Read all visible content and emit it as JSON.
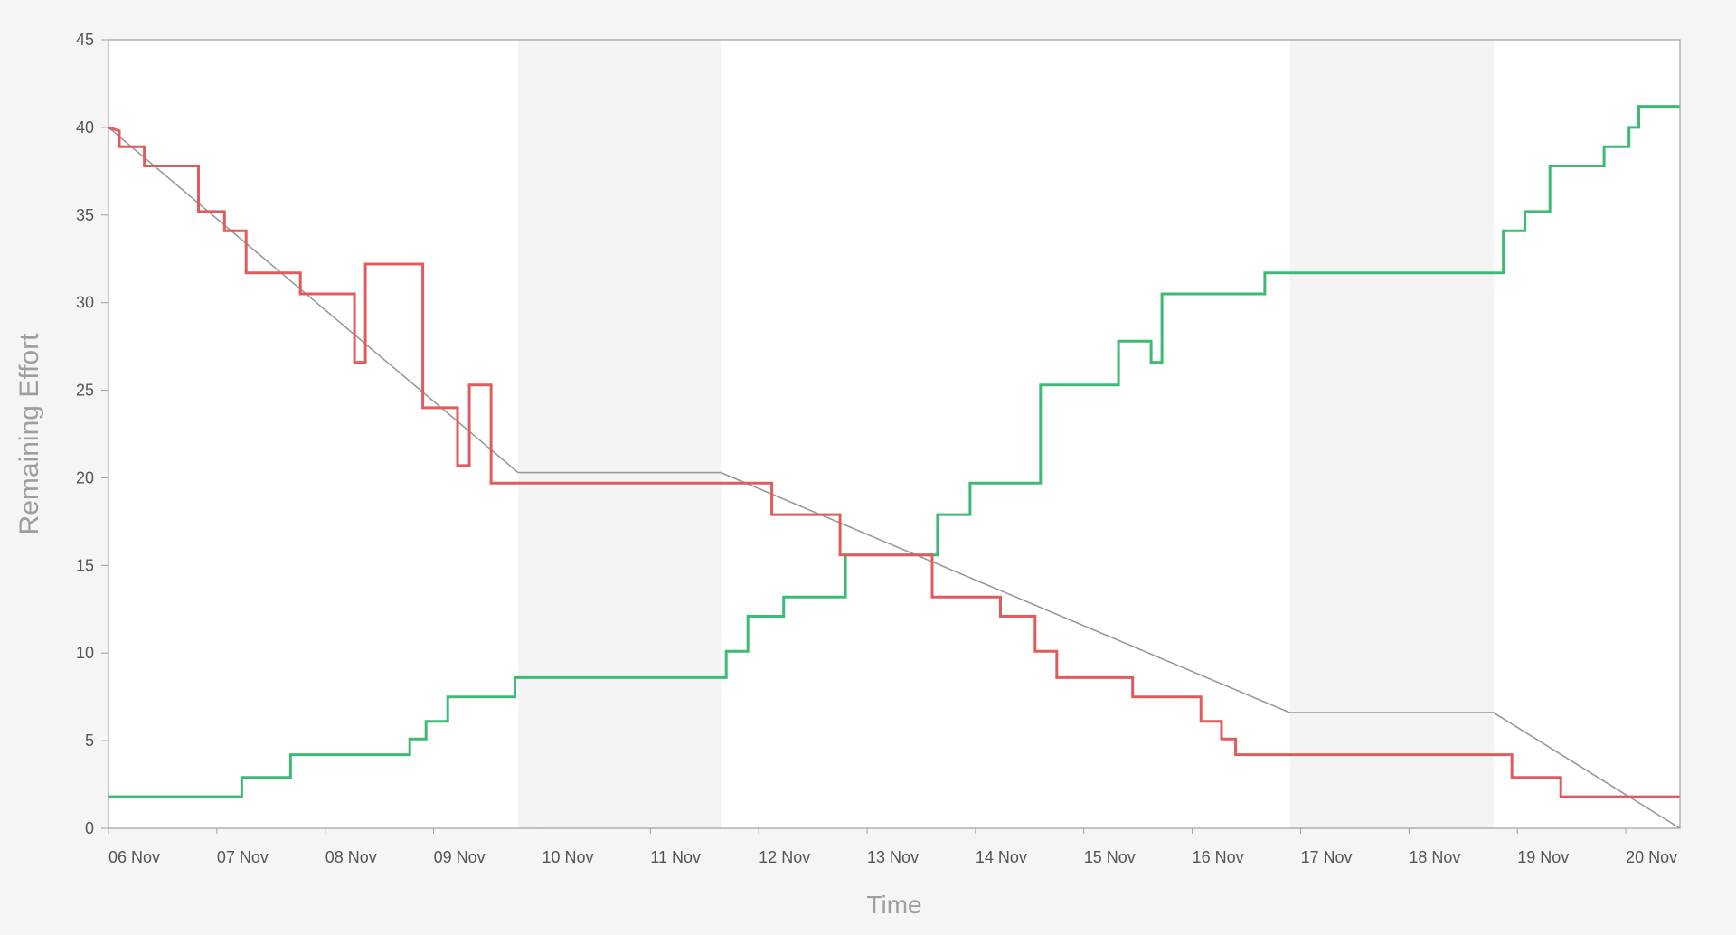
{
  "chart_data": {
    "type": "line",
    "title": "",
    "xlabel": "Time",
    "ylabel": "Remaining Effort",
    "x_tick_labels": [
      "06 Nov",
      "07 Nov",
      "08 Nov",
      "09 Nov",
      "10 Nov",
      "11 Nov",
      "12 Nov",
      "13 Nov",
      "14 Nov",
      "15 Nov",
      "16 Nov",
      "17 Nov",
      "18 Nov",
      "19 Nov",
      "20 Nov"
    ],
    "y_tick_labels": [
      "0",
      "5",
      "10",
      "15",
      "20",
      "25",
      "30",
      "35",
      "40",
      "45"
    ],
    "xlim": [
      0,
      14.5
    ],
    "ylim": [
      0,
      45
    ],
    "grid": false,
    "non_working_periods": [
      [
        3.78,
        5.65
      ],
      [
        10.9,
        12.78
      ]
    ],
    "colors": {
      "remaining": "#e05c5c",
      "completed": "#3dbb75",
      "ideal": "#999999",
      "shade": "#f4f4f4",
      "axis": "#9e9e9e",
      "tick_text": "#555555",
      "axis_title": "#9e9e9e"
    },
    "series": [
      {
        "key": "remaining",
        "step": true,
        "points": [
          [
            0,
            40
          ],
          [
            0.1,
            39.8
          ],
          [
            0.1,
            38.9
          ],
          [
            0.33,
            38.9
          ],
          [
            0.33,
            37.8
          ],
          [
            0.83,
            37.8
          ],
          [
            0.83,
            35.2
          ],
          [
            1.07,
            35.2
          ],
          [
            1.07,
            34.1
          ],
          [
            1.27,
            34.1
          ],
          [
            1.27,
            31.7
          ],
          [
            1.77,
            31.7
          ],
          [
            1.77,
            30.5
          ],
          [
            2.27,
            30.5
          ],
          [
            2.27,
            26.6
          ],
          [
            2.37,
            26.6
          ],
          [
            2.37,
            32.2
          ],
          [
            2.9,
            32.2
          ],
          [
            2.9,
            24
          ],
          [
            3.22,
            24
          ],
          [
            3.22,
            20.7
          ],
          [
            3.33,
            20.7
          ],
          [
            3.33,
            25.3
          ],
          [
            3.53,
            25.3
          ],
          [
            3.53,
            19.7
          ],
          [
            6.12,
            19.7
          ],
          [
            6.12,
            17.9
          ],
          [
            6.75,
            17.9
          ],
          [
            6.75,
            15.6
          ],
          [
            7.6,
            15.6
          ],
          [
            7.6,
            13.2
          ],
          [
            8.23,
            13.2
          ],
          [
            8.23,
            12.1
          ],
          [
            8.55,
            12.1
          ],
          [
            8.55,
            10.1
          ],
          [
            8.75,
            10.1
          ],
          [
            8.75,
            8.6
          ],
          [
            9.45,
            8.6
          ],
          [
            9.45,
            7.5
          ],
          [
            10.08,
            7.5
          ],
          [
            10.08,
            6.1
          ],
          [
            10.27,
            6.1
          ],
          [
            10.27,
            5.1
          ],
          [
            10.4,
            5.1
          ],
          [
            10.4,
            4.2
          ],
          [
            12.95,
            4.2
          ],
          [
            12.95,
            2.9
          ],
          [
            13.4,
            2.9
          ],
          [
            13.4,
            1.8
          ],
          [
            14.5,
            1.8
          ]
        ]
      },
      {
        "key": "completed",
        "step": true,
        "points": [
          [
            0,
            1.8
          ],
          [
            1.23,
            1.8
          ],
          [
            1.23,
            2.9
          ],
          [
            1.68,
            2.9
          ],
          [
            1.68,
            4.2
          ],
          [
            2.78,
            4.2
          ],
          [
            2.78,
            5.1
          ],
          [
            2.93,
            5.1
          ],
          [
            2.93,
            6.1
          ],
          [
            3.13,
            6.1
          ],
          [
            3.13,
            7.5
          ],
          [
            3.75,
            7.5
          ],
          [
            3.75,
            8.6
          ],
          [
            5.7,
            8.6
          ],
          [
            5.7,
            10.1
          ],
          [
            5.9,
            10.1
          ],
          [
            5.9,
            12.1
          ],
          [
            6.23,
            12.1
          ],
          [
            6.23,
            13.2
          ],
          [
            6.8,
            13.2
          ],
          [
            6.8,
            15.6
          ],
          [
            7.65,
            15.6
          ],
          [
            7.65,
            17.9
          ],
          [
            7.95,
            17.9
          ],
          [
            7.95,
            19.7
          ],
          [
            8.6,
            19.7
          ],
          [
            8.6,
            25.3
          ],
          [
            9.32,
            25.3
          ],
          [
            9.32,
            27.8
          ],
          [
            9.62,
            27.8
          ],
          [
            9.62,
            26.6
          ],
          [
            9.72,
            26.6
          ],
          [
            9.72,
            30.5
          ],
          [
            10.67,
            30.5
          ],
          [
            10.67,
            31.7
          ],
          [
            12.87,
            31.7
          ],
          [
            12.87,
            34.1
          ],
          [
            13.07,
            34.1
          ],
          [
            13.07,
            35.2
          ],
          [
            13.3,
            35.2
          ],
          [
            13.3,
            37.8
          ],
          [
            13.8,
            37.8
          ],
          [
            13.8,
            38.9
          ],
          [
            14.03,
            38.9
          ],
          [
            14.03,
            40
          ],
          [
            14.12,
            40
          ],
          [
            14.12,
            41.2
          ],
          [
            14.5,
            41.2
          ]
        ]
      },
      {
        "key": "ideal",
        "step": false,
        "points": [
          [
            0,
            40
          ],
          [
            3.78,
            20.3
          ],
          [
            5.65,
            20.3
          ],
          [
            10.9,
            6.6
          ],
          [
            12.78,
            6.6
          ],
          [
            14.5,
            0
          ]
        ]
      }
    ]
  }
}
